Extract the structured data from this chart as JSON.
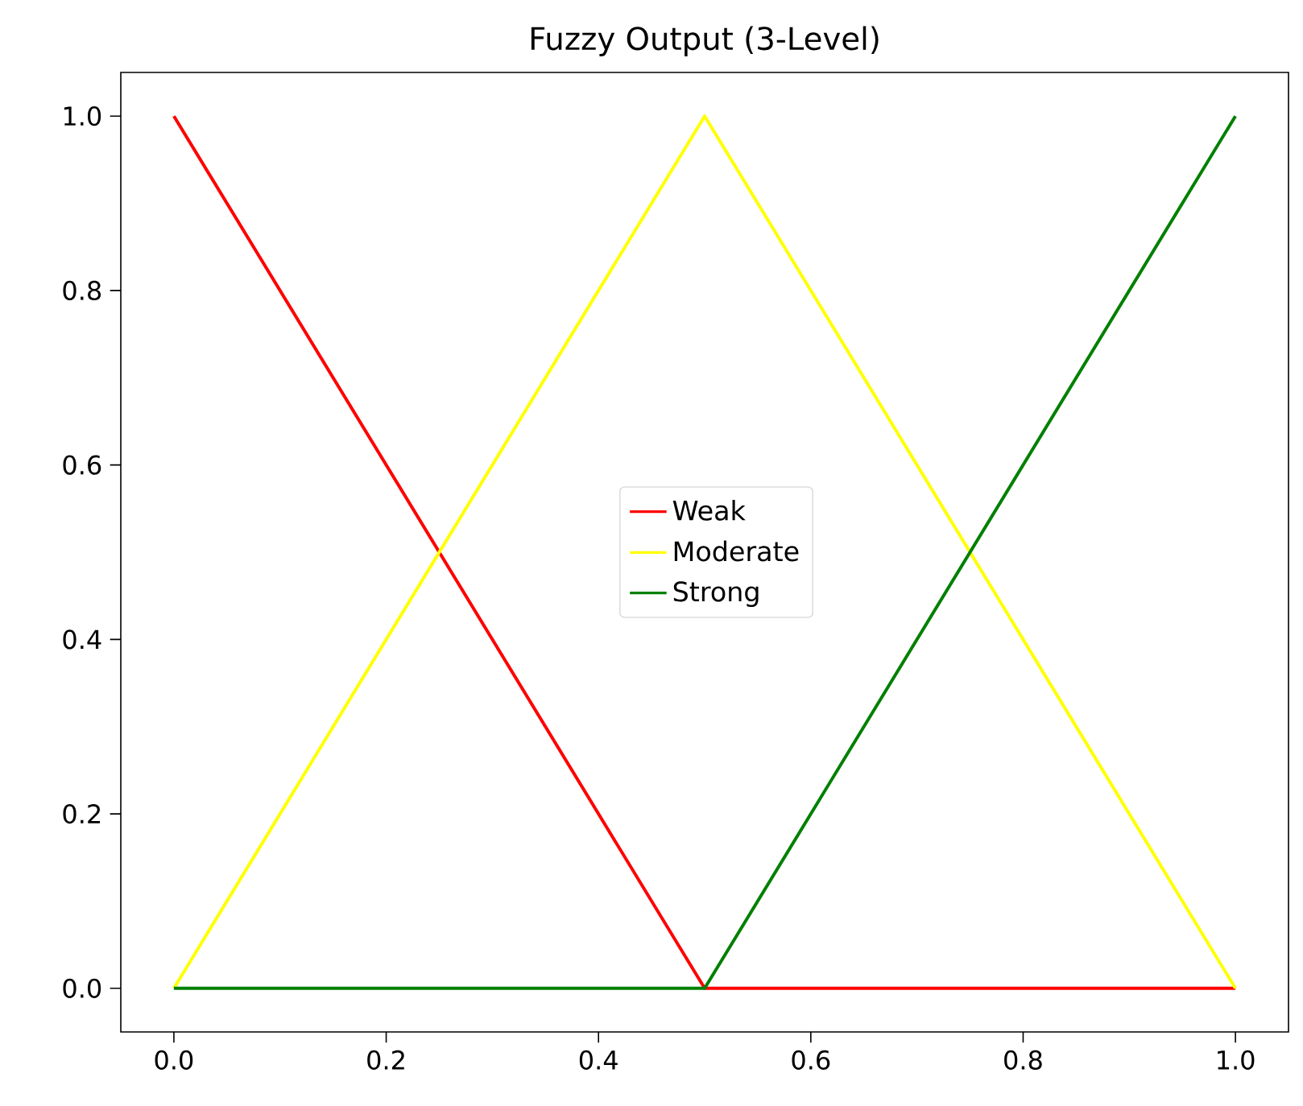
{
  "chart_data": {
    "type": "line",
    "title": "Fuzzy Output (3-Level)",
    "x": [
      0,
      0.5,
      1
    ],
    "series": [
      {
        "name": "Weak",
        "color": "#ff0000",
        "values": [
          1,
          0,
          0
        ]
      },
      {
        "name": "Moderate",
        "color": "#ffff00",
        "values": [
          0,
          1,
          0
        ]
      },
      {
        "name": "Strong",
        "color": "#008000",
        "values": [
          0,
          0,
          1
        ]
      }
    ],
    "xlim": [
      -0.05,
      1.05
    ],
    "ylim": [
      -0.05,
      1.05
    ],
    "xticks": [
      {
        "value": 0,
        "label": "0.0"
      },
      {
        "value": 0.2,
        "label": "0.2"
      },
      {
        "value": 0.4,
        "label": "0.4"
      },
      {
        "value": 0.6,
        "label": "0.6"
      },
      {
        "value": 0.8,
        "label": "0.8"
      },
      {
        "value": 1,
        "label": "1.0"
      }
    ],
    "yticks": [
      {
        "value": 0,
        "label": "0.0"
      },
      {
        "value": 0.2,
        "label": "0.2"
      },
      {
        "value": 0.4,
        "label": "0.4"
      },
      {
        "value": 0.6,
        "label": "0.6"
      },
      {
        "value": 0.8,
        "label": "0.8"
      },
      {
        "value": 1,
        "label": "1.0"
      }
    ],
    "legend": "center"
  }
}
